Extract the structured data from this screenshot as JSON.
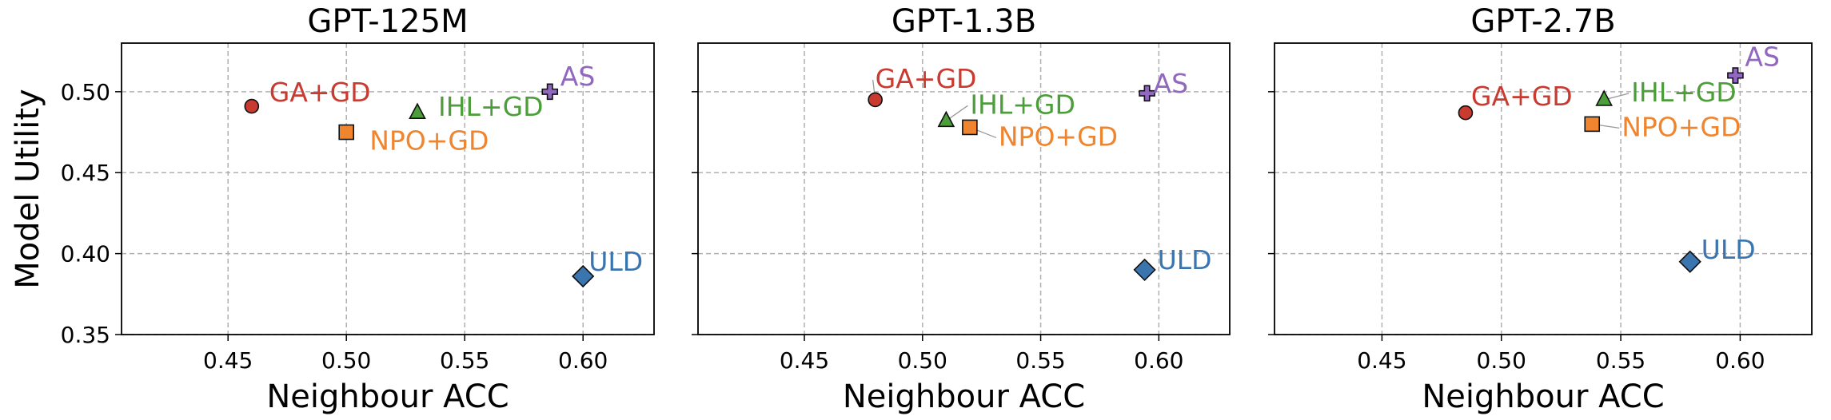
{
  "chart_data": [
    {
      "type": "scatter",
      "title": "GPT-125M",
      "xlabel": "Neighbour ACC",
      "ylabel": "Model Utility",
      "xlim": [
        0.405,
        0.63
      ],
      "ylim": [
        0.35,
        0.53
      ],
      "xticks": [
        "0.45",
        "0.50",
        "0.55",
        "0.60"
      ],
      "yticks": [
        "0.35",
        "0.40",
        "0.45",
        "0.50"
      ],
      "grid": true,
      "points": [
        {
          "name": "GA+GD",
          "x": 0.46,
          "y": 0.491,
          "marker": "circle",
          "color": "#c93a31"
        },
        {
          "name": "NPO+GD",
          "x": 0.5,
          "y": 0.475,
          "marker": "square",
          "color": "#f0852f"
        },
        {
          "name": "IHL+GD",
          "x": 0.53,
          "y": 0.487,
          "marker": "triangle",
          "color": "#4c9e3a"
        },
        {
          "name": "AS",
          "x": 0.586,
          "y": 0.5,
          "marker": "plus",
          "color": "#9068bd"
        },
        {
          "name": "ULD",
          "x": 0.6,
          "y": 0.386,
          "marker": "diamond",
          "color": "#3a75b0"
        }
      ]
    },
    {
      "type": "scatter",
      "title": "GPT-1.3B",
      "xlabel": "Neighbour ACC",
      "ylabel": "",
      "xlim": [
        0.405,
        0.63
      ],
      "ylim": [
        0.35,
        0.53
      ],
      "xticks": [
        "0.45",
        "0.50",
        "0.55",
        "0.60"
      ],
      "yticks": [],
      "grid": true,
      "points": [
        {
          "name": "GA+GD",
          "x": 0.48,
          "y": 0.495,
          "marker": "circle",
          "color": "#c93a31"
        },
        {
          "name": "IHL+GD",
          "x": 0.51,
          "y": 0.482,
          "marker": "triangle",
          "color": "#4c9e3a"
        },
        {
          "name": "NPO+GD",
          "x": 0.52,
          "y": 0.478,
          "marker": "square",
          "color": "#f0852f"
        },
        {
          "name": "AS",
          "x": 0.595,
          "y": 0.499,
          "marker": "plus",
          "color": "#9068bd"
        },
        {
          "name": "ULD",
          "x": 0.594,
          "y": 0.39,
          "marker": "diamond",
          "color": "#3a75b0"
        }
      ]
    },
    {
      "type": "scatter",
      "title": "GPT-2.7B",
      "xlabel": "Neighbour ACC",
      "ylabel": "",
      "xlim": [
        0.405,
        0.63
      ],
      "ylim": [
        0.35,
        0.53
      ],
      "xticks": [
        "0.45",
        "0.50",
        "0.55",
        "0.60"
      ],
      "yticks": [],
      "grid": true,
      "points": [
        {
          "name": "GA+GD",
          "x": 0.485,
          "y": 0.487,
          "marker": "circle",
          "color": "#c93a31"
        },
        {
          "name": "IHL+GD",
          "x": 0.543,
          "y": 0.495,
          "marker": "triangle",
          "color": "#4c9e3a"
        },
        {
          "name": "NPO+GD",
          "x": 0.538,
          "y": 0.48,
          "marker": "square",
          "color": "#f0852f"
        },
        {
          "name": "AS",
          "x": 0.598,
          "y": 0.51,
          "marker": "plus",
          "color": "#9068bd"
        },
        {
          "name": "ULD",
          "x": 0.579,
          "y": 0.395,
          "marker": "diamond",
          "color": "#3a75b0"
        }
      ]
    }
  ]
}
